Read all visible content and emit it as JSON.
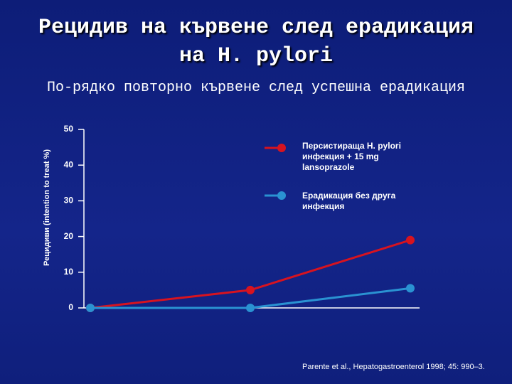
{
  "chart_data": {
    "type": "line",
    "title": [
      "Рецидив на кървене след ерадикация",
      "на H. pylori"
    ],
    "subtitle": "По-рядко повторно кървене след успешна ерадикация",
    "y_label": "Рецидиви (intention to treat %)",
    "categories": [
      null,
      null,
      null
    ],
    "series": [
      {
        "name": "Персистираща H. pylori инфекция + 15 mg lansoprazole",
        "color": "#d7131f",
        "values": [
          0,
          5,
          19
        ]
      },
      {
        "name": "Ерадикация без друга инфекция",
        "color": "#2a92d2",
        "values": [
          0,
          0,
          5.5
        ]
      }
    ],
    "ylim": [
      0,
      50
    ],
    "yticks": [
      0,
      10,
      20,
      30,
      40,
      50
    ],
    "source": "Parente et al., Hepatogastroenterol 1998; 45: 990–3."
  }
}
